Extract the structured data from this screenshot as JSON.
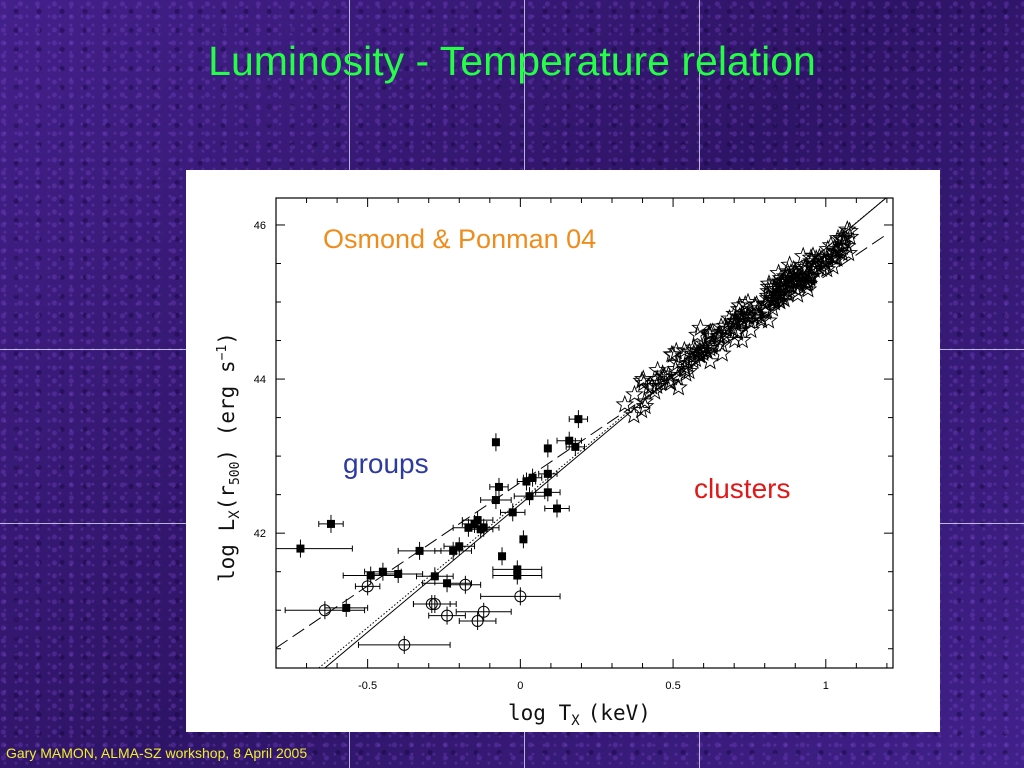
{
  "slide": {
    "title": "Luminosity - Temperature relation",
    "footer": "Gary MAMON, ALMA-SZ workshop, 8 April 2005",
    "colors": {
      "title": "#22ff44",
      "footer": "#f2ef2c",
      "background": "#3a1c78"
    }
  },
  "chart_data": {
    "type": "scatter",
    "xlabel": "log T",
    "xlabel_sub": "X",
    "xlabel_unit": "(keV)",
    "ylabel_main": "log L",
    "ylabel_sub": "X",
    "ylabel_arg": "(r",
    "ylabel_arg_sub": "500",
    "ylabel_unit": ") (erg s",
    "ylabel_exp": "−1",
    "ylabel_close": ")",
    "xlim": [
      -0.8,
      1.22
    ],
    "ylim": [
      40.25,
      46.35
    ],
    "x_ticks": [
      {
        "value": -0.5,
        "label": "-0.5"
      },
      {
        "value": 0,
        "label": "0"
      },
      {
        "value": 0.5,
        "label": "0.5"
      },
      {
        "value": 1,
        "label": "1"
      }
    ],
    "y_ticks": [
      {
        "value": 42,
        "label": "42"
      },
      {
        "value": 44,
        "label": "44"
      },
      {
        "value": 46,
        "label": "46"
      }
    ],
    "annotations": {
      "source": {
        "text": "Osmond & Ponman 04",
        "color": "#ef8c1c"
      },
      "groups": {
        "text": "groups",
        "color": "#2d3aa0"
      },
      "clusters": {
        "text": "clusters",
        "color": "#e01818"
      }
    },
    "series": [
      {
        "marker": "filled-square",
        "points": [
          [
            -0.72,
            41.8
          ],
          [
            -0.62,
            42.12
          ],
          [
            -0.57,
            41.03
          ],
          [
            -0.49,
            41.45
          ],
          [
            -0.45,
            41.5
          ],
          [
            -0.4,
            41.47
          ],
          [
            -0.33,
            41.77
          ],
          [
            -0.28,
            41.44
          ],
          [
            -0.24,
            41.35
          ],
          [
            -0.22,
            41.77
          ],
          [
            -0.2,
            41.83
          ],
          [
            -0.17,
            42.07
          ],
          [
            -0.14,
            42.17
          ],
          [
            -0.12,
            42.07
          ],
          [
            -0.08,
            43.18
          ],
          [
            -0.08,
            42.43
          ],
          [
            -0.07,
            42.6
          ],
          [
            -0.06,
            41.7
          ],
          [
            -0.025,
            42.27
          ],
          [
            -0.01,
            41.53
          ],
          [
            -0.01,
            41.45
          ],
          [
            0.01,
            41.92
          ],
          [
            0.02,
            42.67
          ],
          [
            0.03,
            42.48
          ],
          [
            0.04,
            42.72
          ],
          [
            0.09,
            42.53
          ],
          [
            0.09,
            42.77
          ],
          [
            0.09,
            43.1
          ],
          [
            0.12,
            42.32
          ],
          [
            0.16,
            43.2
          ],
          [
            0.18,
            43.12
          ],
          [
            0.19,
            43.48
          ],
          [
            -0.15,
            42.12
          ],
          [
            -0.13,
            42.05
          ]
        ],
        "xerr": [
          0.17,
          0.04,
          0.07,
          0.09,
          0.06,
          0.08,
          0.07,
          0.06,
          0.08,
          0.06,
          0.05,
          0.05,
          0.05,
          0.05,
          0.0,
          0.05,
          0.03,
          0.0,
          0.04,
          0.08,
          0.08,
          0.0,
          0.03,
          0.05,
          0.03,
          0.04,
          0.03,
          0.0,
          0.04,
          0.04,
          0.03,
          0.03,
          0.04,
          0.04
        ]
      },
      {
        "marker": "open-circle",
        "points": [
          [
            -0.64,
            41.0
          ],
          [
            -0.5,
            41.31
          ],
          [
            -0.38,
            40.55
          ],
          [
            -0.29,
            41.08
          ],
          [
            -0.28,
            41.08
          ],
          [
            -0.24,
            40.93
          ],
          [
            -0.18,
            41.33
          ],
          [
            -0.14,
            40.86
          ],
          [
            -0.12,
            40.98
          ],
          [
            0.0,
            41.18
          ]
        ],
        "xerr": [
          0.13,
          0.04,
          0.15,
          0.06,
          0.07,
          0.06,
          0.05,
          0.06,
          0.09,
          0.13
        ]
      },
      {
        "marker": "open-star",
        "cluster": {
          "x_from": 0.34,
          "x_to": 1.08,
          "slope": 2.88,
          "intercept": 42.69,
          "scatter": 0.26,
          "count": 230,
          "seed": 7
        }
      }
    ],
    "lines": [
      {
        "style": "dashed",
        "x": [
          -0.8,
          1.2
        ],
        "y": [
          40.51,
          45.88
        ]
      },
      {
        "style": "solid",
        "x": [
          -0.64,
          1.2
        ],
        "y": [
          40.25,
          46.36
        ]
      },
      {
        "style": "dotted",
        "x": [
          -0.66,
          1.2
        ],
        "y": [
          40.25,
          46.36
        ]
      }
    ]
  }
}
